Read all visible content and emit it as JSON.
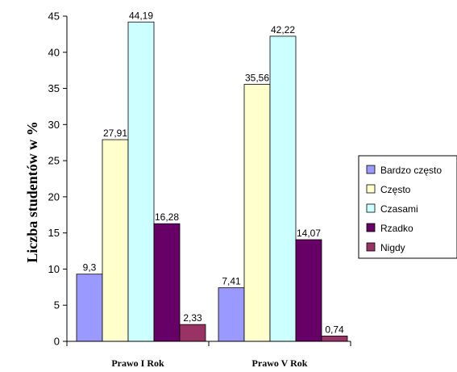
{
  "chart_data": {
    "type": "bar",
    "categories": [
      "Prawo I Rok",
      "Prawo V Rok"
    ],
    "series": [
      {
        "name": "Bardzo często",
        "values": [
          9.3,
          7.41
        ],
        "labels": [
          "9,3",
          "7,41"
        ],
        "color": "#9999FF"
      },
      {
        "name": "Często",
        "values": [
          27.91,
          35.56
        ],
        "labels": [
          "27,91",
          "35,56"
        ],
        "color": "#FFFFCC"
      },
      {
        "name": "Czasami",
        "values": [
          44.19,
          42.22
        ],
        "labels": [
          "44,19",
          "42,22"
        ],
        "color": "#CCFFFF"
      },
      {
        "name": "Rzadko",
        "values": [
          16.28,
          14.07
        ],
        "labels": [
          "16,28",
          "14,07"
        ],
        "color": "#660066"
      },
      {
        "name": "Nigdy",
        "values": [
          2.33,
          0.74
        ],
        "labels": [
          "2,33",
          "0,74"
        ],
        "color": "#993366"
      }
    ],
    "ylabel": "Liczba studentów w %",
    "xlabel": "",
    "ylim": [
      0,
      45
    ],
    "yticks": [
      0,
      5,
      10,
      15,
      20,
      25,
      30,
      35,
      40,
      45
    ],
    "grid": false,
    "legend": "right"
  }
}
